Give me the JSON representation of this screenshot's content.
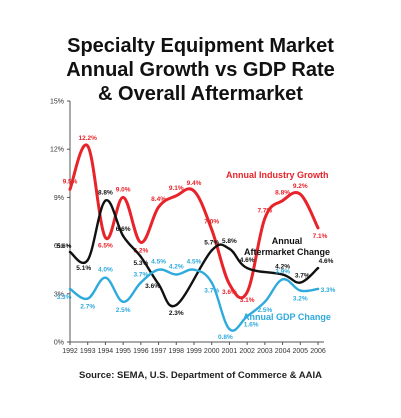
{
  "title_lines": [
    "Specialty Equipment Market",
    "Annual Growth vs GDP Rate",
    "& Overall Aftermarket"
  ],
  "source": "Source: SEMA, U.S. Department of Commerce & AAIA",
  "colors": {
    "industry": "#e8232a",
    "aftermarket": "#111111",
    "gdp": "#2eaadc",
    "axis": "#555555"
  },
  "chart_data": {
    "type": "line",
    "title": "Specialty Equipment Market Annual Growth vs GDP Rate & Overall Aftermarket",
    "xlabel": "",
    "ylabel": "",
    "ylim": [
      0,
      15
    ],
    "yticks": [
      "0%",
      "3%",
      "6%",
      "9%",
      "12%",
      "15%"
    ],
    "categories": [
      "1992",
      "1993",
      "1994",
      "1995",
      "1996",
      "1997",
      "1998",
      "1999",
      "2000",
      "2001",
      "2002",
      "2003",
      "2004",
      "2005",
      "2006"
    ],
    "series": [
      {
        "name": "Annual Industry Growth",
        "color": "#e8232a",
        "values": [
          9.5,
          12.2,
          6.5,
          9.0,
          6.2,
          8.4,
          9.1,
          9.4,
          7.0,
          3.6,
          3.1,
          7.7,
          8.8,
          9.2,
          7.1
        ],
        "labels": [
          "9.5%",
          "12.2%",
          "6.5%",
          "9.0%",
          "6.2%",
          "8.4%",
          "9.1%",
          "9.4%",
          "7.0%",
          "3.6%",
          "3.1%",
          "7.7%",
          "8.8%",
          "9.2%",
          "7.1%"
        ]
      },
      {
        "name": "Annual Aftermarket Change",
        "color": "#111111",
        "values": [
          5.6,
          5.1,
          8.8,
          6.6,
          5.3,
          3.6,
          2.3,
          5.7,
          5.8,
          4.6,
          4.2,
          3.7,
          4.6
        ],
        "x": [
          "1992",
          "1993",
          "1994",
          "1995",
          "1996",
          "1997",
          "1998",
          "2000",
          "2001",
          "2002",
          "2004",
          "2005",
          "2006"
        ],
        "labels": [
          "5.6%",
          "5.1%",
          "8.8%",
          "6.6%",
          "5.3%",
          "3.6%",
          "2.3%",
          "5.7%",
          "5.8%",
          "4.6%",
          "4.2%",
          "3.7%",
          "4.6%"
        ]
      },
      {
        "name": "Annual GDP Change",
        "color": "#2eaadc",
        "values": [
          3.3,
          2.7,
          4.0,
          2.5,
          3.7,
          4.5,
          4.2,
          4.5,
          3.7,
          0.8,
          1.6,
          2.5,
          3.9,
          3.2,
          3.3
        ],
        "labels": [
          "3.3%",
          "2.7%",
          "4.0%",
          "2.5%",
          "3.7%",
          "4.5%",
          "4.2%",
          "4.5%",
          "3.7%",
          "0.8%",
          "1.6%",
          "2.5%",
          "3.9%",
          "3.2%",
          "3.3%"
        ]
      }
    ]
  }
}
